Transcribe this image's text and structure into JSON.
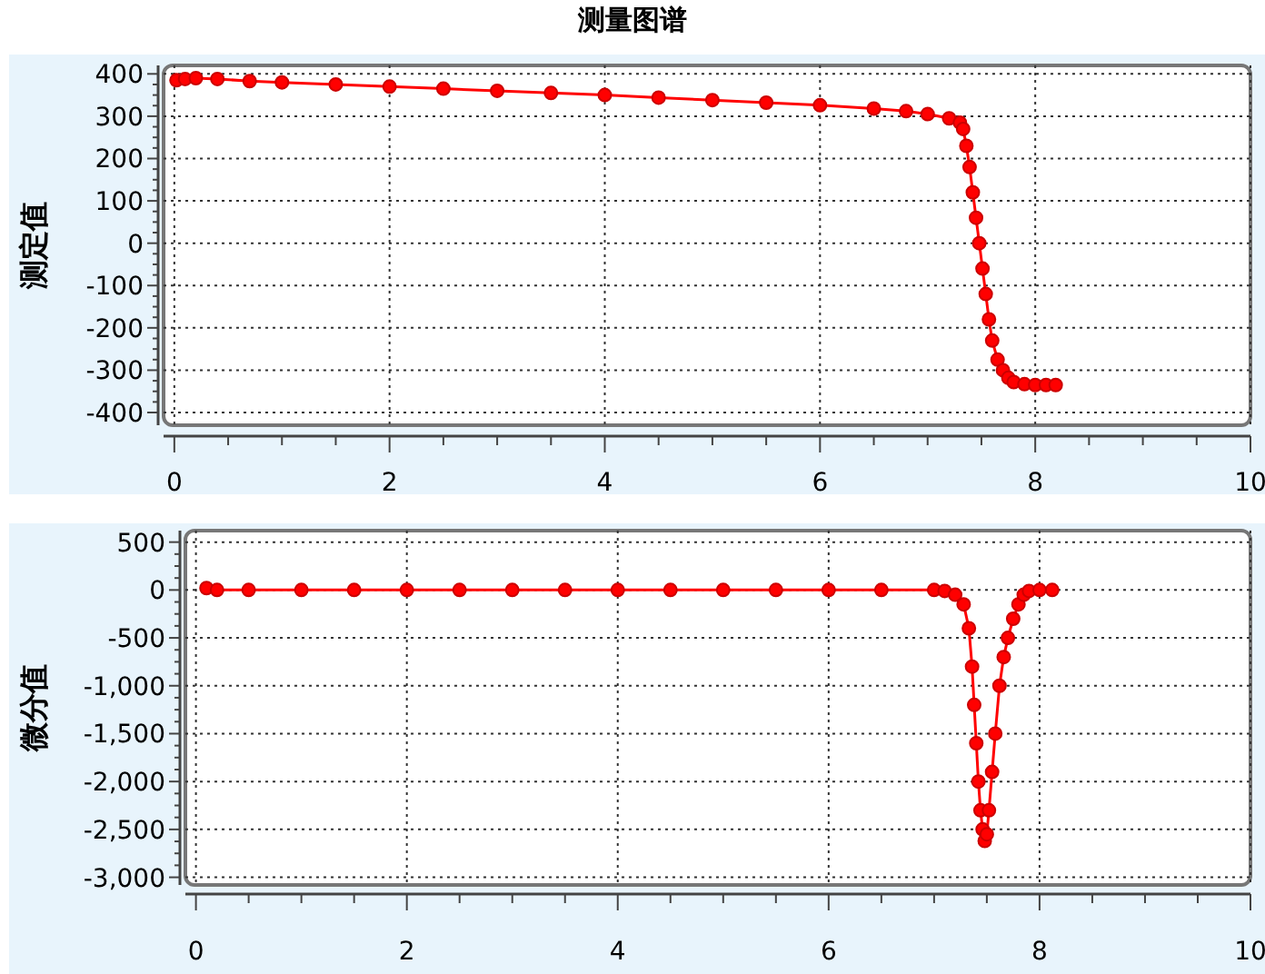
{
  "chart_data": [
    {
      "type": "line",
      "title": "测量图谱",
      "ylabel": "测定值",
      "marker": "circle",
      "line_style": "solid",
      "grid": true,
      "xlim": [
        -0.1,
        10
      ],
      "xticks": [
        0,
        2,
        4,
        6,
        8,
        10
      ],
      "ylim": [
        -430,
        420
      ],
      "yticks": [
        -400,
        -300,
        -200,
        -100,
        0,
        100,
        200,
        300,
        400
      ],
      "series": [
        {
          "color": "#ff0000",
          "x": [
            0.02,
            0.1,
            0.2,
            0.4,
            0.7,
            1,
            1.5,
            2,
            2.5,
            3,
            3.5,
            4,
            4.5,
            5,
            5.5,
            6,
            6.5,
            6.8,
            7.0,
            7.2,
            7.3,
            7.33,
            7.36,
            7.39,
            7.42,
            7.45,
            7.48,
            7.51,
            7.54,
            7.57,
            7.6,
            7.65,
            7.7,
            7.75,
            7.8,
            7.9,
            8.0,
            8.1,
            8.19
          ],
          "values": [
            385,
            388,
            390,
            388,
            383,
            380,
            375,
            370,
            365,
            360,
            355,
            350,
            344,
            338,
            332,
            326,
            318,
            312,
            305,
            295,
            285,
            270,
            230,
            180,
            120,
            60,
            0,
            -60,
            -120,
            -180,
            -230,
            -275,
            -300,
            -318,
            -328,
            -333,
            -335,
            -335,
            -335
          ]
        }
      ]
    },
    {
      "type": "line",
      "ylabel": "微分值",
      "marker": "circle",
      "line_style": "solid",
      "grid": true,
      "xlim": [
        -0.1,
        10
      ],
      "xticks": [
        0,
        2,
        4,
        6,
        8,
        10
      ],
      "ylim": [
        -3080,
        620
      ],
      "yticks": [
        500,
        0,
        -500,
        {
          "value": -1000,
          "label": "-1,000"
        },
        {
          "value": -1500,
          "label": "-1,500"
        },
        {
          "value": -2000,
          "label": "-2,000"
        },
        {
          "value": -2500,
          "label": "-2,500"
        },
        {
          "value": -3000,
          "label": "-3,000"
        }
      ],
      "series": [
        {
          "color": "#ff0000",
          "x": [
            0.1,
            0.2,
            0.5,
            1,
            1.5,
            2,
            2.5,
            3,
            3.5,
            4,
            4.5,
            5,
            5.5,
            6,
            6.5,
            7.0,
            7.1,
            7.2,
            7.28,
            7.33,
            7.36,
            7.38,
            7.4,
            7.42,
            7.44,
            7.46,
            7.48,
            7.5,
            7.52,
            7.55,
            7.58,
            7.62,
            7.66,
            7.7,
            7.75,
            7.8,
            7.85,
            7.9,
            8.0,
            8.12
          ],
          "values": [
            20,
            0,
            0,
            0,
            0,
            0,
            0,
            0,
            0,
            0,
            0,
            0,
            0,
            0,
            0,
            0,
            -10,
            -50,
            -150,
            -400,
            -800,
            -1200,
            -1600,
            -2000,
            -2300,
            -2500,
            -2620,
            -2550,
            -2300,
            -1900,
            -1500,
            -1000,
            -700,
            -500,
            -300,
            -150,
            -50,
            -10,
            0,
            0
          ]
        }
      ]
    }
  ]
}
